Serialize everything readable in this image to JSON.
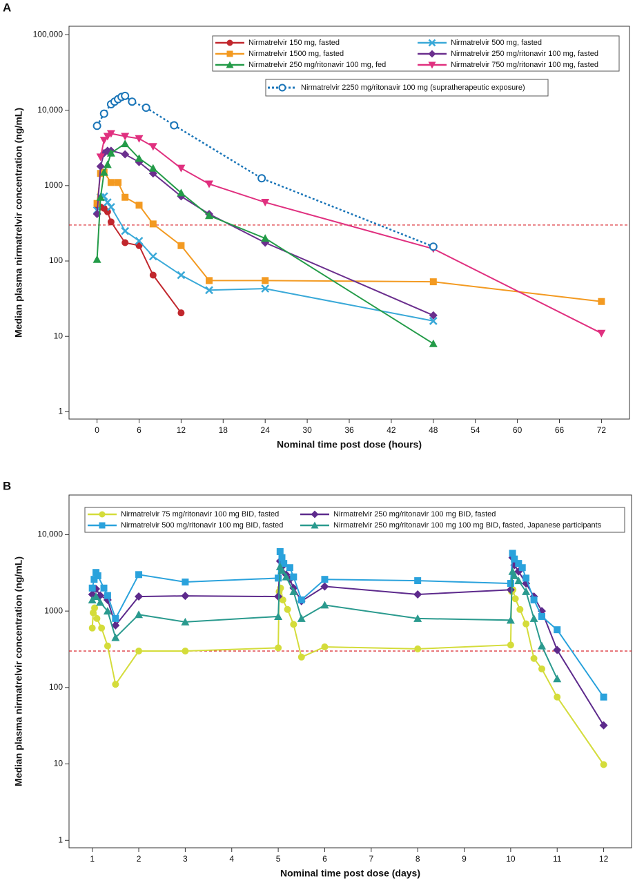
{
  "chart_data": [
    {
      "type": "line",
      "panel_label": "A",
      "xlabel": "Nominal time post dose (hours)",
      "ylabel": "Median plasma nirmatrelvir concentration (ng/mL)",
      "log_y": true,
      "xlim": [
        -4,
        76
      ],
      "ylim": [
        0.8,
        130000
      ],
      "xticks": [
        0,
        6,
        12,
        18,
        24,
        30,
        36,
        42,
        48,
        54,
        60,
        66,
        72
      ],
      "yticks": [
        1,
        10,
        100,
        1000,
        {
          "value": 10000,
          "label": "10,000"
        },
        {
          "value": 100000,
          "label": "100,000"
        }
      ],
      "reference_line": 300,
      "reference_color": "#d9262c",
      "series": [
        {
          "name": "Nirmatrelvir 150 mg, fasted",
          "color": "#c1272d",
          "marker": "circle",
          "x": [
            0,
            0.5,
            1,
            1.5,
            2,
            4,
            6,
            8,
            12
          ],
          "values": [
            550,
            520,
            500,
            450,
            330,
            175,
            160,
            65,
            20.5
          ]
        },
        {
          "name": "Nirmatrelvir 500 mg, fasted",
          "color": "#3aa9d8",
          "marker": "x",
          "x": [
            0,
            0.5,
            1,
            1.5,
            2,
            4,
            6,
            8,
            12,
            16,
            24,
            48
          ],
          "values": [
            470,
            700,
            720,
            600,
            520,
            250,
            185,
            115,
            65,
            41,
            43,
            16
          ]
        },
        {
          "name": "Nirmatrelvir 1500 mg, fasted",
          "color": "#f39a21",
          "marker": "square",
          "x": [
            0,
            0.5,
            1,
            2,
            3,
            4,
            6,
            8,
            12,
            16,
            24,
            48,
            72
          ],
          "values": [
            580,
            1450,
            1500,
            1100,
            1100,
            700,
            550,
            310,
            160,
            55,
            55,
            53,
            29
          ]
        },
        {
          "name": "Nirmatrelvir 250 mg/ritonavir 100 mg, fasted",
          "color": "#6b2f8e",
          "marker": "diamond",
          "x": [
            0,
            0.5,
            1,
            1.5,
            2,
            4,
            6,
            8,
            12,
            16,
            24,
            48
          ],
          "values": [
            420,
            1800,
            2700,
            2900,
            2900,
            2600,
            2050,
            1450,
            720,
            420,
            175,
            19
          ]
        },
        {
          "name": "Nirmatrelvir 250 mg/ritonavir 100 mg, fed",
          "color": "#239b48",
          "marker": "triangle",
          "x": [
            0,
            0.5,
            1,
            1.5,
            2,
            4,
            6,
            8,
            12,
            16,
            24,
            48
          ],
          "values": [
            105,
            700,
            1500,
            1900,
            2700,
            3600,
            2300,
            1700,
            800,
            400,
            200,
            8
          ]
        },
        {
          "name": "Nirmatrelvir 750 mg/ritonavir 100 mg, fasted",
          "color": "#e0307f",
          "marker": "triangle-down",
          "x": [
            0.5,
            1,
            1.5,
            2,
            4,
            6,
            8,
            12,
            16,
            24,
            48,
            72
          ],
          "values": [
            2400,
            4000,
            4500,
            4900,
            4500,
            4200,
            3300,
            1700,
            1050,
            600,
            145,
            11
          ]
        },
        {
          "name": "Nirmatrelvir 2250 mg/ritonavir 100 mg (supratherapeutic exposure)",
          "color": "#1a75b8",
          "marker": "open-circle",
          "dashed": true,
          "x": [
            0,
            1,
            2,
            2.5,
            3,
            3.5,
            4,
            5,
            7,
            11,
            23.5,
            48
          ],
          "values": [
            6200,
            9000,
            12000,
            13000,
            14000,
            15000,
            15500,
            13000,
            10800,
            6300,
            1250,
            155
          ]
        }
      ]
    },
    {
      "type": "line",
      "panel_label": "B",
      "xlabel": "Nominal time post dose (days)",
      "ylabel": "Median plasma nirmatrelvir concentration (ng/mL)",
      "log_y": true,
      "xlim": [
        0.5,
        12.6
      ],
      "ylim": [
        0.8,
        33000
      ],
      "xticks": [
        1,
        2,
        3,
        4,
        5,
        6,
        7,
        8,
        9,
        10,
        11,
        12
      ],
      "yticks": [
        1,
        10,
        100,
        1000,
        {
          "value": 10000,
          "label": "10,000"
        }
      ],
      "reference_line": 300,
      "reference_color": "#d9262c",
      "series": [
        {
          "name": "Nirmatrelvir 75 mg/ritonavir 100 mg BID, fasted",
          "color": "#d4dc3a",
          "marker": "circle",
          "x": [
            1,
            1.02,
            1.05,
            1.1,
            1.2,
            1.33,
            1.5,
            2,
            3,
            5,
            5.02,
            5.05,
            5.1,
            5.2,
            5.33,
            5.5,
            6,
            8,
            10,
            10.02,
            10.05,
            10.1,
            10.2,
            10.33,
            10.5,
            10.67,
            11,
            12
          ],
          "values": [
            600,
            950,
            1100,
            800,
            600,
            350,
            110,
            300,
            300,
            330,
            1800,
            2000,
            1400,
            1050,
            670,
            250,
            340,
            320,
            360,
            1800,
            1900,
            1450,
            1050,
            680,
            240,
            175,
            75,
            9.8
          ]
        },
        {
          "name": "Nirmatrelvir 250 mg/ritonavir 100 mg BID, fasted",
          "color": "#5d2a8c",
          "marker": "diamond",
          "x": [
            1,
            1.08,
            1.17,
            1.33,
            1.5,
            2,
            3,
            5,
            5.04,
            5.08,
            5.17,
            5.25,
            5.33,
            5.5,
            6,
            8,
            10,
            10.04,
            10.08,
            10.17,
            10.33,
            10.5,
            10.67,
            11,
            12
          ],
          "values": [
            1650,
            1950,
            1600,
            1400,
            650,
            1550,
            1580,
            1550,
            4500,
            3800,
            3000,
            2600,
            2000,
            1350,
            2100,
            1650,
            1900,
            5000,
            4000,
            3300,
            2300,
            1550,
            1000,
            310,
            32
          ]
        },
        {
          "name": "Nirmatrelvir 500 mg/ritonavir 100 mg BID, fasted",
          "color": "#2aa2dc",
          "marker": "square",
          "x": [
            1,
            1.04,
            1.08,
            1.12,
            1.25,
            1.33,
            1.5,
            2,
            3,
            5,
            5.04,
            5.08,
            5.12,
            5.25,
            5.33,
            5.5,
            6,
            8,
            10,
            10.04,
            10.08,
            10.17,
            10.25,
            10.33,
            10.5,
            10.67,
            11,
            12
          ],
          "values": [
            2000,
            2600,
            3200,
            2900,
            2000,
            1600,
            800,
            3000,
            2400,
            2700,
            6000,
            5000,
            4200,
            3700,
            2800,
            1400,
            2600,
            2500,
            2300,
            5700,
            4800,
            4200,
            3700,
            2700,
            1400,
            850,
            570,
            75
          ]
        },
        {
          "name": "Nirmatrelvir 250 mg/ritonavir 100 mg 100 mg BID, fasted, Japanese participants",
          "color": "#2a9a8e",
          "marker": "triangle",
          "x": [
            1,
            1.08,
            1.17,
            1.33,
            1.5,
            2,
            3,
            5,
            5.04,
            5.08,
            5.17,
            5.33,
            5.5,
            6,
            8,
            10,
            10.04,
            10.08,
            10.17,
            10.33,
            10.5,
            10.67,
            11
          ],
          "values": [
            1400,
            1550,
            1300,
            1000,
            450,
            900,
            720,
            850,
            3800,
            3400,
            2800,
            1800,
            800,
            1200,
            800,
            760,
            3300,
            2900,
            2500,
            1800,
            800,
            350,
            130
          ]
        }
      ]
    }
  ]
}
